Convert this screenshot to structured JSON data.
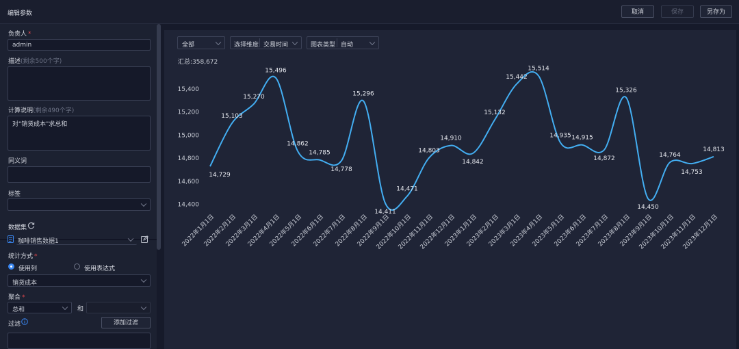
{
  "window": {
    "title": "编辑参数"
  },
  "toolbar": {
    "cancel_label": "取消",
    "save_label": "保存",
    "save_as_label": "另存为"
  },
  "form": {
    "owner_label": "负责人",
    "owner_value": "admin",
    "desc_label": "描述",
    "desc_hint": "(剩余500个字)",
    "calc_label": "计算说明",
    "calc_hint": "(剩余490个字)",
    "calc_value": "对\"销货成本\"求总和",
    "synonym_label": "同义词",
    "tag_label": "标签",
    "dataset_label": "数据集",
    "dataset_value": "咖啡销售数据1",
    "stat_label": "统计方式",
    "radio_use_column": "使用列",
    "radio_use_expr": "使用表达式",
    "column_value": "销货成本",
    "agg_label": "聚合",
    "agg_value": "总和",
    "and_label": "和",
    "filter_label": "过滤",
    "add_filter_label": "添加过滤"
  },
  "controls": {
    "scope_value": "全部",
    "dimension_label": "选择维度",
    "dimension_value": "交易时间",
    "chart_type_label": "图表类型",
    "chart_type_value": "自动"
  },
  "summary": {
    "text": "汇总:358,672"
  },
  "colors": {
    "line": "#43aef2",
    "accent": "#3a86f0",
    "required": "#e0474c"
  },
  "icons": {
    "refresh": "refresh-icon",
    "dataset": "dataset-icon",
    "edit": "edit-icon",
    "info": "info-icon"
  },
  "chart_data": {
    "type": "line",
    "categories": [
      "2022年1月1日",
      "2022年2月1日",
      "2022年3月1日",
      "2022年4月1日",
      "2022年5月1日",
      "2022年6月1日",
      "2022年7月1日",
      "2022年8月1日",
      "2022年9月1日",
      "2022年10月1日",
      "2022年11月1日",
      "2022年12月1日",
      "2023年1月1日",
      "2023年2月1日",
      "2023年3月1日",
      "2023年4月1日",
      "2023年5月1日",
      "2023年6月1日",
      "2023年7月1日",
      "2023年8月1日",
      "2023年9月1日",
      "2023年10月1日",
      "2023年11月1日",
      "2023年12月1日"
    ],
    "values": [
      14729,
      15103,
      15270,
      15496,
      14862,
      14785,
      14778,
      15296,
      14411,
      14471,
      14803,
      14910,
      14842,
      15132,
      15442,
      15514,
      14935,
      14915,
      14872,
      15326,
      14450,
      14764,
      14753,
      14813
    ],
    "value_labels": [
      "14,729",
      "15,103",
      "15,270",
      "15,496",
      "14,862",
      "14,785",
      "14,778",
      "15,296",
      "14,411",
      "14,471",
      "14,803",
      "14,910",
      "14,842",
      "15,132",
      "15,442",
      "15,514",
      "14,935",
      "14,915",
      "14,872",
      "15,326",
      "14,450",
      "14,764",
      "14,753",
      "14,813"
    ],
    "yticks": [
      14400,
      14600,
      14800,
      15000,
      15200,
      15400
    ],
    "ytick_labels": [
      "14,400",
      "14,600",
      "14,800",
      "15,000",
      "15,200",
      "15,400"
    ],
    "ylim": [
      14380,
      15530
    ],
    "grid": false,
    "legend": "none"
  }
}
